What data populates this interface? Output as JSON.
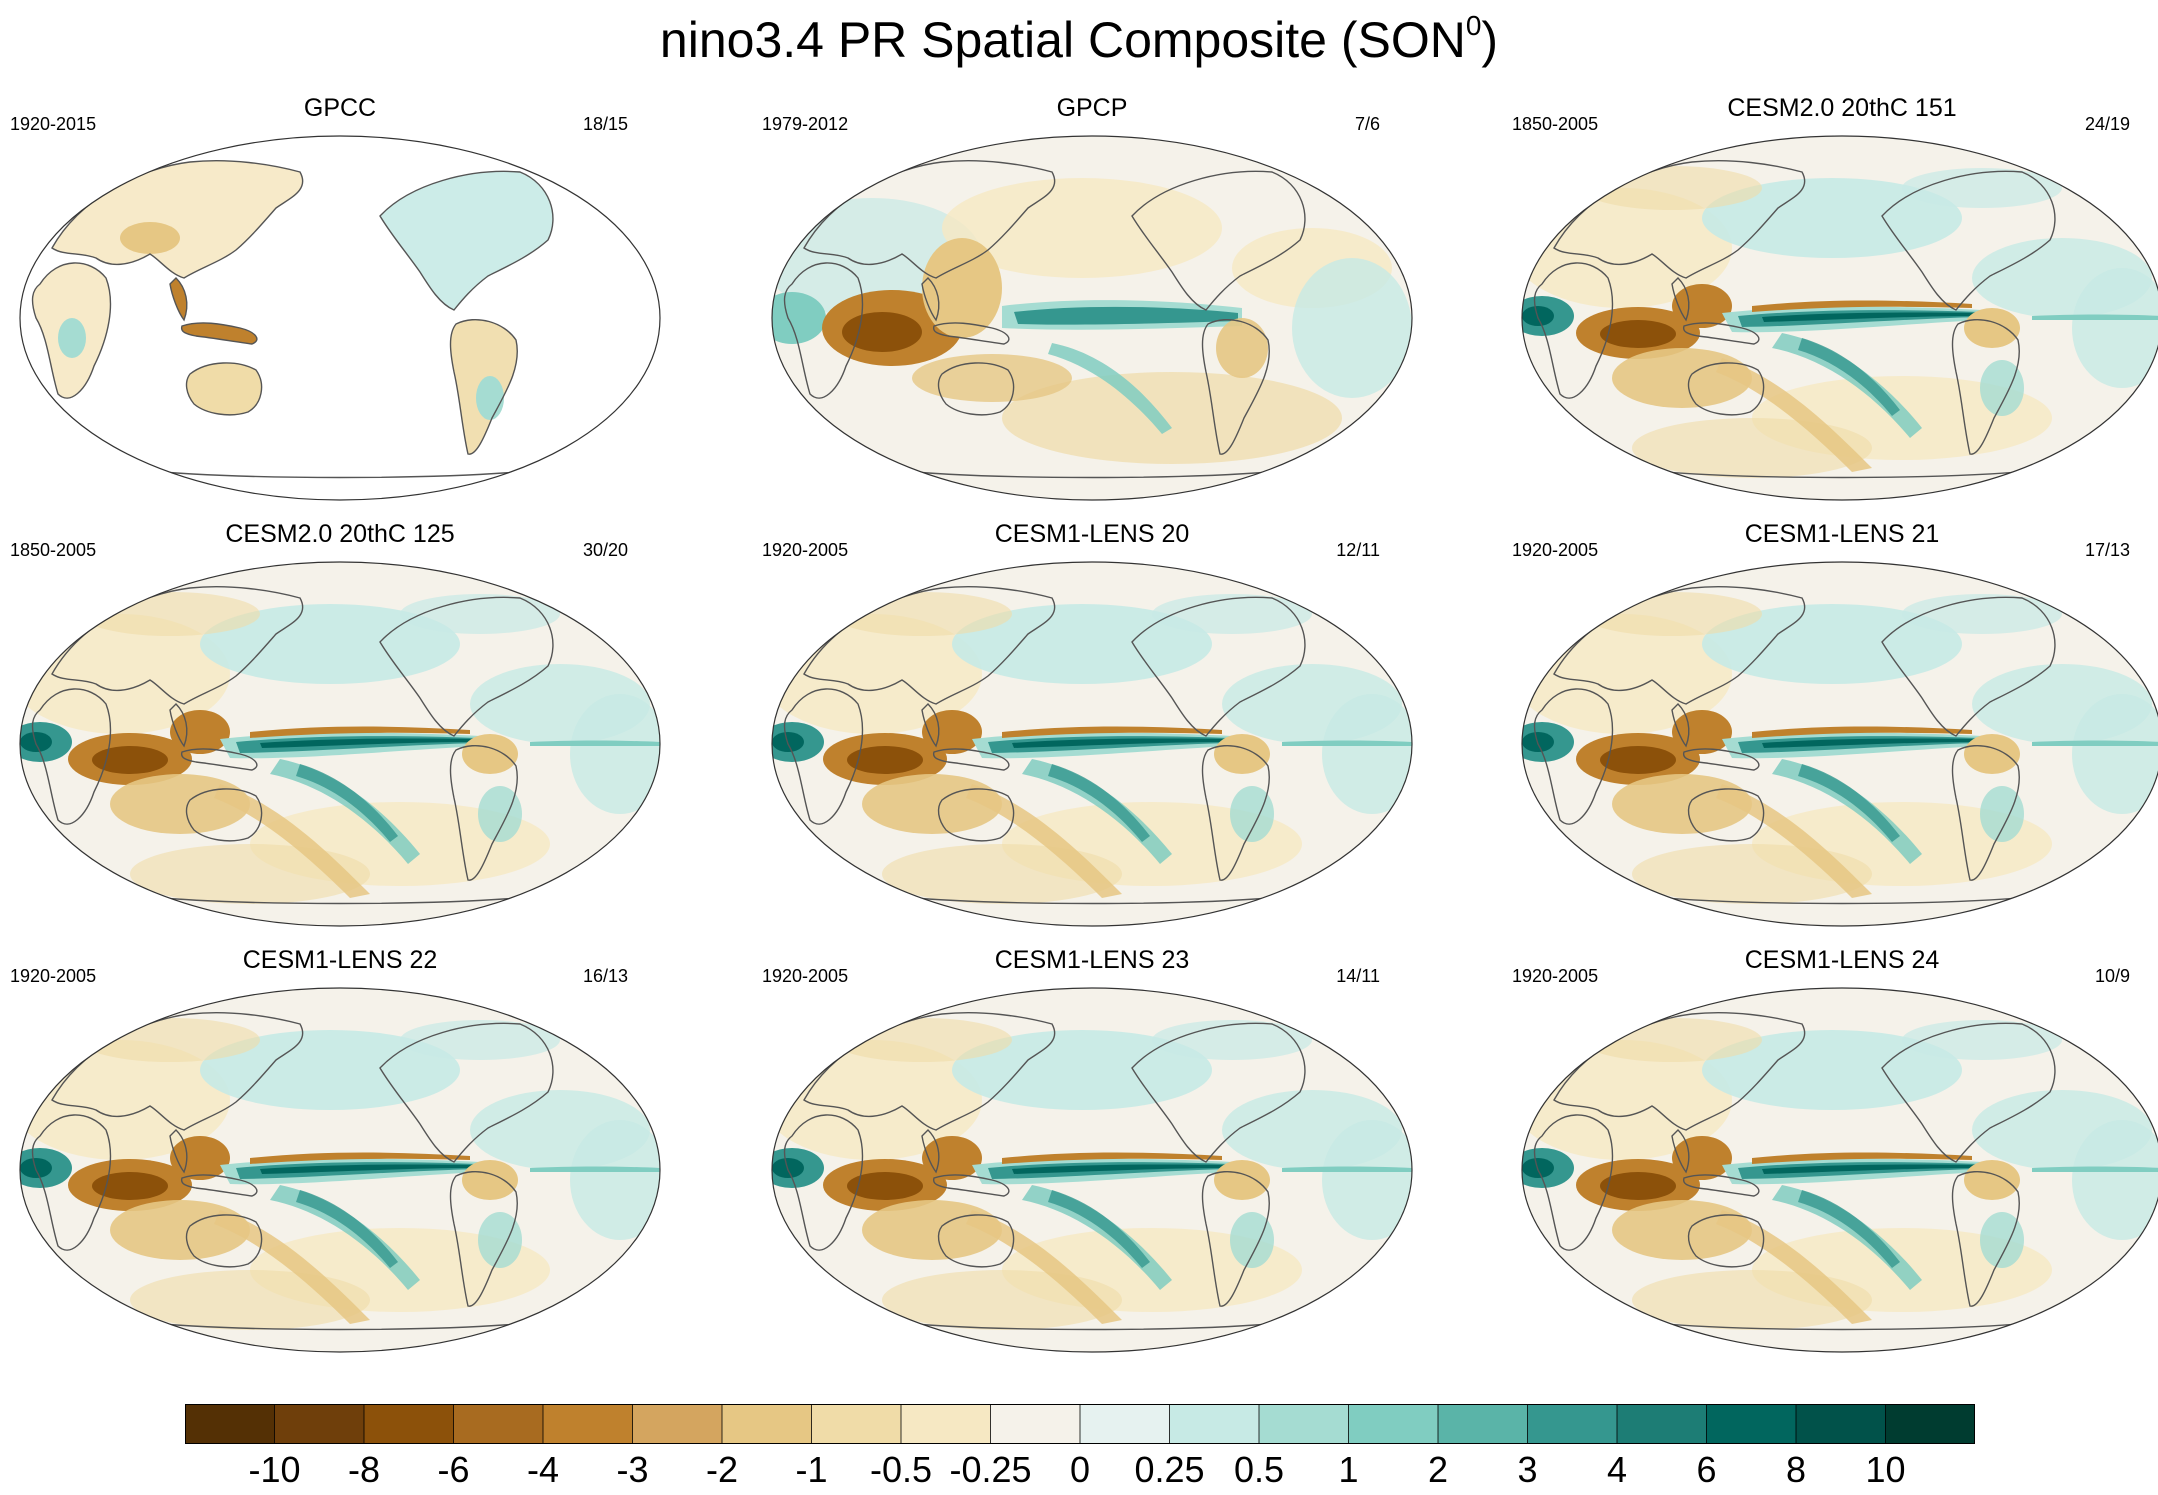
{
  "title": {
    "text": "nino3.4 PR Spatial Composite (SON",
    "sup": "0",
    "close": ")"
  },
  "panels": [
    {
      "title": "GPCC",
      "period": "1920-2015",
      "count": "18/15",
      "pattern": "land"
    },
    {
      "title": "GPCP",
      "period": "1979-2012",
      "count": "7/6",
      "pattern": "obs"
    },
    {
      "title": "CESM2.0 20thC 151",
      "period": "1850-2005",
      "count": "24/19",
      "pattern": "model"
    },
    {
      "title": "CESM2.0 20thC 125",
      "period": "1850-2005",
      "count": "30/20",
      "pattern": "model"
    },
    {
      "title": "CESM1-LENS 20",
      "period": "1920-2005",
      "count": "12/11",
      "pattern": "model"
    },
    {
      "title": "CESM1-LENS 21",
      "period": "1920-2005",
      "count": "17/13",
      "pattern": "model"
    },
    {
      "title": "CESM1-LENS 22",
      "period": "1920-2005",
      "count": "16/13",
      "pattern": "model"
    },
    {
      "title": "CESM1-LENS 23",
      "period": "1920-2005",
      "count": "14/11",
      "pattern": "model"
    },
    {
      "title": "CESM1-LENS 24",
      "period": "1920-2005",
      "count": "10/9",
      "pattern": "model"
    }
  ],
  "colorbar": {
    "labels": [
      "-10",
      "-8",
      "-6",
      "-4",
      "-3",
      "-2",
      "-1",
      "-0.5",
      "-0.25",
      "0",
      "0.25",
      "0.5",
      "1",
      "2",
      "3",
      "4",
      "6",
      "8",
      "10"
    ],
    "colors": [
      "#543005",
      "#6f3f0b",
      "#8c510a",
      "#a86b20",
      "#bf812d",
      "#d4a55f",
      "#e6c784",
      "#f0dca8",
      "#f6e8c3",
      "#f5f2ea",
      "#e6f2f0",
      "#c7eae5",
      "#a5dcd2",
      "#80cdc1",
      "#5ab4a8",
      "#35978f",
      "#1d7d75",
      "#01665e",
      "#01524a",
      "#003c30"
    ]
  }
}
